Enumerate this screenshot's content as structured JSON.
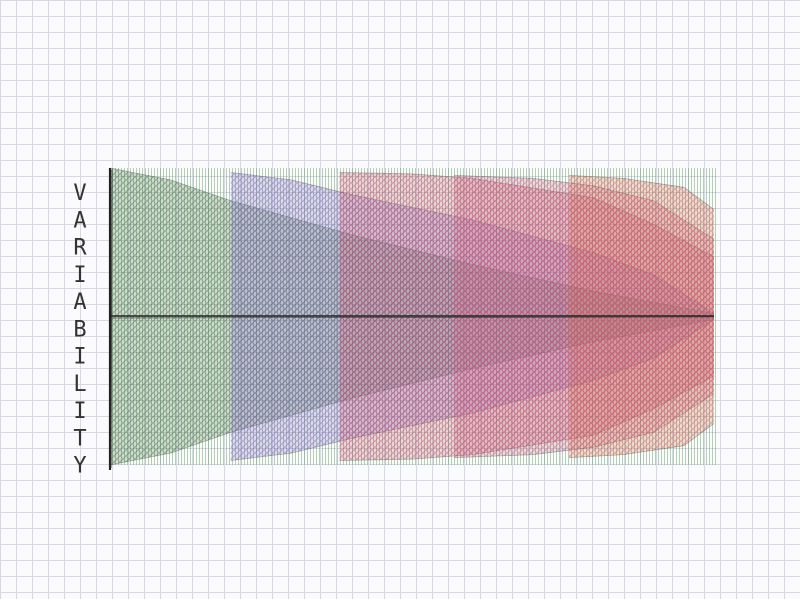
{
  "chart_data": {
    "type": "area",
    "title": "",
    "xlabel": "",
    "ylabel": "VARIABILITY",
    "xlim": [
      0,
      100
    ],
    "ylim": [
      -1,
      1
    ],
    "grid": true,
    "legend": "none",
    "background": {
      "hatch_color": "#3d8a3d",
      "x_range": [
        0,
        100
      ],
      "y_range": [
        -1,
        1
      ]
    },
    "series": [
      {
        "color": "#3d6b3d",
        "x_start": 0,
        "points": [
          [
            0,
            1.0
          ],
          [
            10,
            0.92
          ],
          [
            20,
            0.78
          ],
          [
            40,
            0.55
          ],
          [
            60,
            0.35
          ],
          [
            80,
            0.17
          ],
          [
            100,
            0.02
          ]
        ]
      },
      {
        "color": "#7a5fc0",
        "x_start": 20,
        "points": [
          [
            20,
            0.97
          ],
          [
            30,
            0.92
          ],
          [
            40,
            0.82
          ],
          [
            60,
            0.65
          ],
          [
            80,
            0.43
          ],
          [
            90,
            0.28
          ],
          [
            100,
            0.02
          ]
        ]
      },
      {
        "color": "#c44a6a",
        "x_start": 38,
        "points": [
          [
            38,
            0.97
          ],
          [
            50,
            0.96
          ],
          [
            60,
            0.93
          ],
          [
            80,
            0.8
          ],
          [
            90,
            0.62
          ],
          [
            100,
            0.4
          ]
        ]
      },
      {
        "color": "#c85a80",
        "x_start": 57,
        "points": [
          [
            57,
            0.95
          ],
          [
            70,
            0.93
          ],
          [
            80,
            0.88
          ],
          [
            90,
            0.78
          ],
          [
            100,
            0.52
          ]
        ]
      },
      {
        "color": "#d26050",
        "x_start": 76,
        "points": [
          [
            76,
            0.95
          ],
          [
            85,
            0.93
          ],
          [
            95,
            0.87
          ],
          [
            100,
            0.72
          ]
        ]
      }
    ]
  }
}
